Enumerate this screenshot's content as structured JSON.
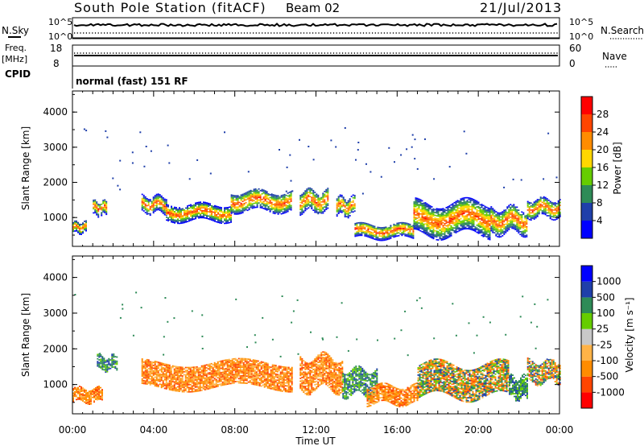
{
  "header": {
    "station": "South Pole Station (fitACF)",
    "beam": "Beam 02",
    "date": "21/Jul/2013"
  },
  "strip_labels": {
    "nsky": "N.Sky",
    "freq_line1": "Freq.",
    "freq_line2": "[MHz]",
    "cpid": "CPID",
    "nsearch": "N.Search",
    "nave": "Nave",
    "nsky_ticks": [
      "10^5",
      "10^0"
    ],
    "freq_ticks": [
      "18",
      "8"
    ],
    "nsearch_ticks": [
      "10^5",
      "10^0"
    ],
    "nave_ticks": [
      "60",
      "0"
    ],
    "cpid_text": "normal (fast) 151 RF"
  },
  "colors": {
    "power_scale": [
      "#0000ff",
      "#1f3faa",
      "#2e8b57",
      "#66cd00",
      "#ffd700",
      "#ff8c00",
      "#ff4500",
      "#ff0000"
    ],
    "velocity_scale": [
      "#ff0000",
      "#ff4500",
      "#ff8c00",
      "#ffb347",
      "#c8c8c8",
      "#66cd00",
      "#2e8b57",
      "#1f3faa",
      "#0000ff"
    ]
  },
  "chart_data": [
    {
      "type": "heatmap",
      "name": "power-panel",
      "xlabel": "",
      "ylabel": "Slant Range [km]",
      "xlim": [
        0,
        24
      ],
      "ylim": [
        180,
        4600
      ],
      "yticks": [
        "1000",
        "2000",
        "3000",
        "4000"
      ],
      "colorbar_label": "Power [dB]",
      "colorbar_ticks": [
        "4",
        "8",
        "12",
        "16",
        "20",
        "24",
        "28"
      ],
      "bands": [
        {
          "x0": 0.0,
          "x1": 0.7,
          "center": 700,
          "width": 300
        },
        {
          "x0": 1.0,
          "x1": 1.7,
          "center": 1250,
          "width": 400
        },
        {
          "x0": 3.4,
          "x1": 4.6,
          "center": 1350,
          "width": 450
        },
        {
          "x0": 4.6,
          "x1": 7.8,
          "center": 1120,
          "width": 450
        },
        {
          "x0": 7.8,
          "x1": 10.8,
          "center": 1450,
          "width": 550
        },
        {
          "x0": 11.2,
          "x1": 12.6,
          "center": 1450,
          "width": 600
        },
        {
          "x0": 13.0,
          "x1": 13.9,
          "center": 1300,
          "width": 500
        },
        {
          "x0": 13.9,
          "x1": 16.8,
          "center": 600,
          "width": 400
        },
        {
          "x0": 16.8,
          "x1": 20.6,
          "center": 950,
          "width": 900
        },
        {
          "x0": 20.6,
          "x1": 22.4,
          "center": 900,
          "width": 700
        },
        {
          "x0": 22.4,
          "x1": 24.0,
          "center": 1250,
          "width": 500
        }
      ]
    },
    {
      "type": "heatmap",
      "name": "velocity-panel",
      "xlabel": "Time UT",
      "ylabel": "Slant Range [km]",
      "xlim": [
        0,
        24
      ],
      "ylim": [
        180,
        4600
      ],
      "xticks": [
        "00:00",
        "04:00",
        "08:00",
        "12:00",
        "16:00",
        "20:00",
        "00:00"
      ],
      "yticks": [
        "1000",
        "2000",
        "3000",
        "4000"
      ],
      "colorbar_label": "Velocity [m s⁻¹]",
      "colorbar_ticks": [
        "-1000",
        "-500",
        "-100",
        "-25",
        "25",
        "100",
        "500",
        "1000"
      ],
      "bands": [
        {
          "x0": 0.0,
          "x1": 1.5,
          "center": 700,
          "width": 400
        },
        {
          "x0": 1.2,
          "x1": 2.2,
          "center": 1600,
          "width": 400
        },
        {
          "x0": 3.4,
          "x1": 10.8,
          "center": 1250,
          "width": 700
        },
        {
          "x0": 11.2,
          "x1": 13.3,
          "center": 1300,
          "width": 900
        },
        {
          "x0": 13.3,
          "x1": 15.0,
          "center": 1050,
          "width": 700
        },
        {
          "x0": 14.5,
          "x1": 17.0,
          "center": 700,
          "width": 500
        },
        {
          "x0": 17.0,
          "x1": 21.5,
          "center": 1100,
          "width": 900
        },
        {
          "x0": 21.5,
          "x1": 22.4,
          "center": 900,
          "width": 600
        },
        {
          "x0": 22.4,
          "x1": 24.0,
          "center": 1350,
          "width": 600
        }
      ]
    }
  ]
}
